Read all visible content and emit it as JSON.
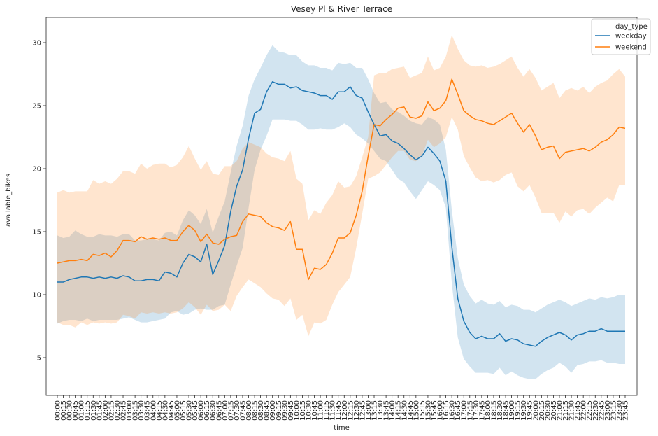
{
  "chart_data": {
    "type": "line",
    "title": "Vesey Pl & River Terrace",
    "xlabel": "time",
    "ylabel": "available_bikes",
    "ylim": [
      2,
      32
    ],
    "yticks": [
      5,
      10,
      15,
      20,
      25,
      30
    ],
    "x": [
      "00:00",
      "00:15",
      "00:30",
      "00:45",
      "01:00",
      "01:15",
      "01:30",
      "01:45",
      "02:00",
      "02:15",
      "02:30",
      "02:45",
      "03:00",
      "03:15",
      "03:30",
      "03:45",
      "04:00",
      "04:15",
      "04:30",
      "04:45",
      "05:00",
      "05:15",
      "05:30",
      "05:45",
      "06:00",
      "06:15",
      "06:30",
      "06:45",
      "07:00",
      "07:15",
      "07:30",
      "07:45",
      "08:00",
      "08:15",
      "08:30",
      "08:45",
      "09:00",
      "09:15",
      "09:30",
      "09:45",
      "10:00",
      "10:15",
      "10:30",
      "10:45",
      "11:00",
      "11:15",
      "11:30",
      "11:45",
      "12:00",
      "12:15",
      "12:30",
      "12:45",
      "13:00",
      "13:15",
      "13:30",
      "13:45",
      "14:00",
      "14:15",
      "14:30",
      "14:45",
      "15:00",
      "15:15",
      "15:30",
      "15:45",
      "16:00",
      "16:15",
      "16:30",
      "16:45",
      "17:00",
      "17:15",
      "17:30",
      "17:45",
      "18:00",
      "18:15",
      "18:30",
      "18:45",
      "19:00",
      "19:15",
      "19:30",
      "19:45",
      "20:00",
      "20:15",
      "20:30",
      "20:45",
      "21:00",
      "21:15",
      "21:30",
      "21:45",
      "22:00",
      "22:15",
      "22:30",
      "22:45",
      "23:00",
      "23:15",
      "23:30",
      "23:45"
    ],
    "legend": {
      "title": "day_type",
      "position": "top-right"
    },
    "grid": false,
    "series": [
      {
        "name": "weekday",
        "color": "#1f77b4",
        "band_color": "#1f77b4",
        "values": [
          11.0,
          11.0,
          11.2,
          11.3,
          11.4,
          11.4,
          11.3,
          11.4,
          11.3,
          11.4,
          11.3,
          11.5,
          11.4,
          11.1,
          11.1,
          11.2,
          11.2,
          11.1,
          11.8,
          11.7,
          11.4,
          12.5,
          13.2,
          13.0,
          12.6,
          14.0,
          11.6,
          12.7,
          13.9,
          16.6,
          18.6,
          19.9,
          22.4,
          24.4,
          24.7,
          26.1,
          26.9,
          26.7,
          26.7,
          26.4,
          26.5,
          26.2,
          26.1,
          26.0,
          25.8,
          25.8,
          25.5,
          26.1,
          26.1,
          26.5,
          25.8,
          25.6,
          24.5,
          23.5,
          22.6,
          22.7,
          22.2,
          22.0,
          21.6,
          21.1,
          20.7,
          21.0,
          21.7,
          21.2,
          20.6,
          19.0,
          13.8,
          9.7,
          7.9,
          7.0,
          6.5,
          6.7,
          6.5,
          6.5,
          6.9,
          6.3,
          6.5,
          6.4,
          6.1,
          6.0,
          5.9,
          6.3,
          6.6,
          6.8,
          7.0,
          6.8,
          6.4,
          6.8,
          6.9,
          7.1,
          7.1,
          7.3,
          7.1,
          7.1,
          7.1,
          7.1
        ],
        "lower": [
          7.7,
          7.9,
          8.0,
          8.0,
          7.9,
          8.1,
          7.9,
          8.0,
          8.0,
          8.0,
          8.0,
          8.1,
          8.2,
          8.0,
          7.8,
          7.8,
          7.9,
          8.0,
          8.1,
          8.6,
          8.7,
          8.4,
          8.5,
          8.8,
          8.9,
          8.8,
          8.8,
          9.1,
          9.2,
          10.8,
          12.3,
          13.7,
          16.9,
          19.9,
          21.5,
          22.6,
          23.9,
          23.9,
          23.9,
          23.8,
          23.8,
          23.5,
          23.1,
          23.1,
          23.2,
          23.1,
          23.1,
          23.3,
          23.6,
          23.3,
          22.7,
          22.4,
          22.0,
          21.4,
          20.8,
          20.6,
          19.9,
          19.2,
          18.9,
          18.2,
          17.6,
          18.3,
          19.0,
          18.7,
          18.3,
          16.9,
          10.9,
          6.6,
          4.9,
          4.3,
          3.8,
          3.8,
          3.8,
          3.7,
          4.2,
          3.6,
          3.9,
          3.6,
          3.4,
          3.3,
          3.3,
          3.7,
          4.0,
          4.2,
          4.6,
          4.3,
          3.8,
          4.4,
          4.5,
          4.7,
          4.7,
          4.8,
          4.6,
          4.6,
          4.5,
          4.5
        ],
        "upper": [
          14.7,
          14.5,
          14.6,
          15.1,
          14.8,
          14.6,
          14.6,
          14.8,
          14.7,
          14.7,
          14.6,
          14.8,
          14.8,
          14.3,
          14.3,
          14.4,
          14.4,
          14.3,
          14.9,
          15.0,
          14.7,
          15.9,
          16.7,
          16.3,
          15.6,
          16.8,
          14.9,
          16.2,
          17.4,
          19.7,
          21.8,
          23.4,
          25.8,
          27.1,
          28.0,
          29.0,
          29.8,
          29.3,
          29.2,
          29.0,
          29.0,
          28.5,
          28.2,
          28.2,
          28.0,
          28.0,
          27.8,
          28.4,
          28.3,
          28.4,
          28.0,
          28.0,
          27.1,
          26.0,
          25.2,
          25.3,
          24.7,
          24.5,
          24.2,
          23.8,
          23.6,
          23.5,
          24.1,
          23.9,
          23.5,
          21.5,
          16.7,
          12.9,
          10.8,
          9.9,
          9.3,
          9.6,
          9.3,
          9.2,
          9.5,
          9.0,
          9.2,
          9.1,
          8.8,
          8.8,
          8.6,
          8.9,
          9.2,
          9.4,
          9.6,
          9.4,
          9.1,
          9.3,
          9.5,
          9.7,
          9.6,
          9.8,
          9.7,
          9.8,
          10.0,
          10.0
        ]
      },
      {
        "name": "weekend",
        "color": "#ff7f0e",
        "band_color": "#ff7f0e",
        "values": [
          12.5,
          12.6,
          12.7,
          12.7,
          12.8,
          12.7,
          13.2,
          13.1,
          13.3,
          13.0,
          13.5,
          14.3,
          14.3,
          14.2,
          14.6,
          14.4,
          14.5,
          14.4,
          14.5,
          14.3,
          14.3,
          15.0,
          15.5,
          15.1,
          14.2,
          14.8,
          14.1,
          14.0,
          14.4,
          14.6,
          14.7,
          15.8,
          16.4,
          16.3,
          16.2,
          15.7,
          15.4,
          15.3,
          15.1,
          15.8,
          13.6,
          13.6,
          11.2,
          12.1,
          12.0,
          12.4,
          13.3,
          14.5,
          14.5,
          14.9,
          16.3,
          18.2,
          21.0,
          23.5,
          23.4,
          23.9,
          24.3,
          24.8,
          24.9,
          24.1,
          24.0,
          24.2,
          25.3,
          24.6,
          24.8,
          25.4,
          27.1,
          25.9,
          24.6,
          24.2,
          23.9,
          23.8,
          23.6,
          23.5,
          23.8,
          24.1,
          24.4,
          23.6,
          22.9,
          23.5,
          22.6,
          21.5,
          21.7,
          21.8,
          20.8,
          21.3,
          21.4,
          21.5,
          21.6,
          21.4,
          21.7,
          22.1,
          22.3,
          22.7,
          23.3,
          23.2
        ],
        "lower": [
          7.8,
          7.6,
          7.6,
          7.4,
          7.8,
          7.6,
          7.8,
          7.7,
          7.8,
          7.7,
          7.8,
          8.4,
          8.3,
          8.1,
          8.6,
          8.5,
          8.6,
          8.5,
          8.6,
          8.5,
          8.6,
          8.9,
          9.4,
          9.0,
          8.4,
          9.2,
          8.7,
          8.8,
          9.2,
          8.7,
          9.9,
          10.6,
          11.2,
          10.9,
          10.6,
          10.1,
          9.7,
          9.6,
          9.1,
          9.7,
          8.0,
          8.4,
          6.7,
          7.8,
          7.7,
          8.0,
          9.2,
          10.2,
          10.8,
          11.4,
          13.7,
          16.4,
          19.2,
          19.4,
          19.7,
          20.3,
          20.9,
          21.4,
          21.4,
          20.7,
          20.6,
          21.0,
          22.3,
          21.7,
          22.0,
          22.5,
          24.1,
          23.1,
          21.0,
          20.1,
          19.3,
          19.0,
          19.1,
          18.9,
          19.1,
          19.5,
          19.7,
          18.6,
          18.2,
          18.7,
          17.7,
          16.5,
          16.5,
          16.5,
          15.7,
          16.6,
          16.2,
          16.7,
          16.8,
          16.4,
          16.9,
          17.3,
          17.7,
          17.4,
          18.7,
          18.7
        ],
        "upper": [
          18.1,
          18.3,
          18.1,
          18.2,
          18.2,
          18.2,
          19.1,
          18.8,
          19.0,
          18.8,
          19.2,
          19.8,
          19.8,
          19.6,
          20.4,
          20.0,
          20.3,
          20.4,
          20.4,
          20.1,
          20.3,
          20.9,
          21.8,
          20.8,
          19.9,
          20.6,
          19.6,
          19.5,
          20.2,
          20.2,
          20.6,
          21.6,
          22.1,
          21.9,
          21.7,
          21.2,
          20.9,
          20.8,
          20.6,
          21.4,
          19.2,
          18.8,
          15.9,
          16.7,
          16.4,
          17.3,
          17.9,
          19.0,
          18.5,
          18.6,
          19.4,
          20.9,
          22.5,
          27.4,
          27.6,
          27.6,
          27.9,
          28.0,
          28.1,
          27.2,
          27.4,
          27.6,
          28.9,
          27.8,
          28.0,
          28.9,
          30.6,
          29.5,
          28.6,
          28.2,
          28.1,
          28.2,
          28.0,
          28.1,
          28.3,
          28.6,
          28.9,
          28.0,
          27.3,
          27.9,
          27.2,
          26.2,
          26.5,
          26.8,
          25.6,
          26.2,
          26.4,
          26.2,
          26.5,
          26.0,
          26.5,
          26.8,
          27.0,
          27.5,
          27.9,
          27.3
        ]
      }
    ]
  }
}
